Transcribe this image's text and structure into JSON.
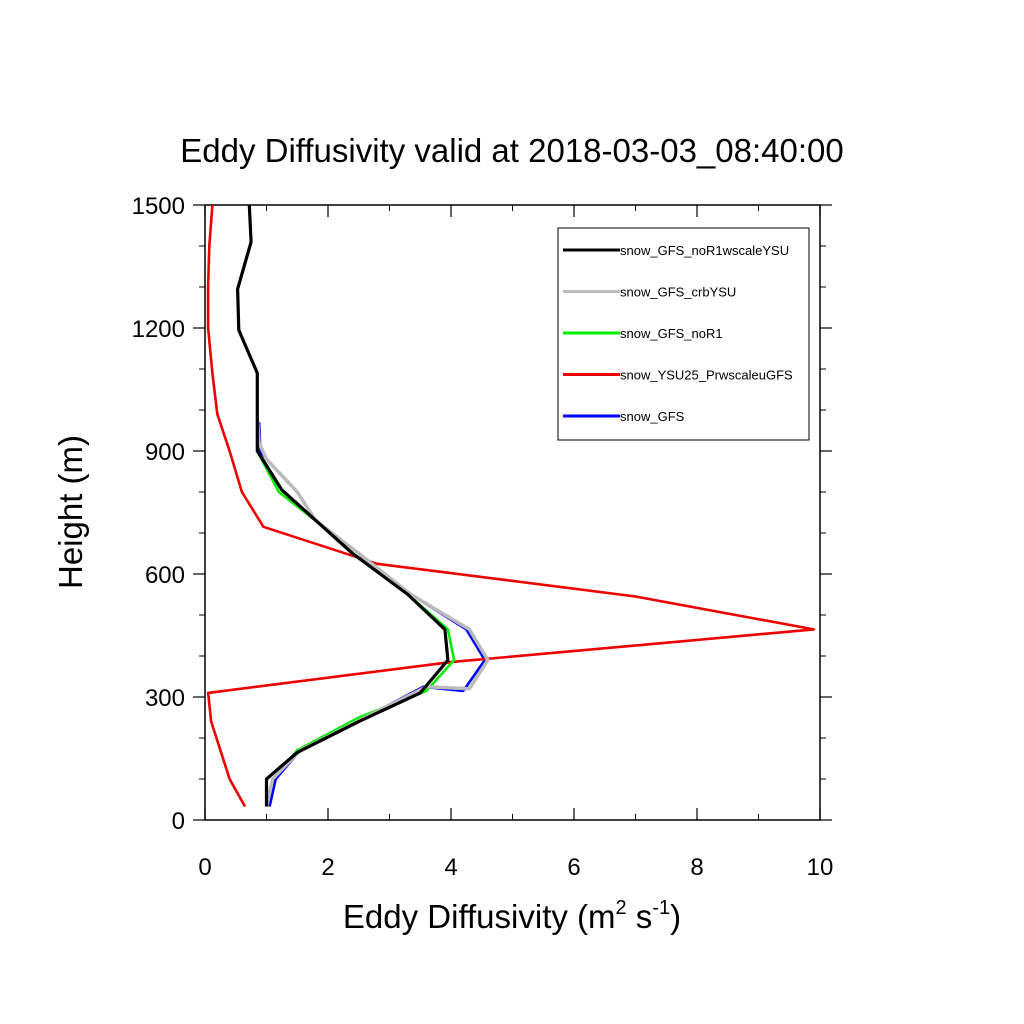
{
  "chart_data": {
    "type": "line",
    "title": "Eddy Diffusivity valid at 2018-03-03_08:40:00",
    "xlabel": {
      "main": "Eddy Diffusivity (m",
      "sup1": "2",
      "mid": " s",
      "sup2": "-1",
      "end": ")"
    },
    "ylabel": "Height (m)",
    "xlim": [
      0,
      10
    ],
    "ylim": [
      0,
      1500
    ],
    "xticks": [
      0,
      2,
      4,
      6,
      8,
      10
    ],
    "yticks": [
      0,
      300,
      600,
      900,
      1200,
      1500
    ],
    "xticks_minor": [
      1,
      3,
      5,
      7,
      9
    ],
    "yticks_minor": [
      100,
      200,
      400,
      500,
      700,
      800,
      1000,
      1100,
      1300,
      1400
    ],
    "legend_position": "top-right",
    "series": [
      {
        "name": "snow_GFS",
        "color": "#0000ff",
        "x": [
          1.05,
          1.15,
          1.55,
          2.6,
          3.55,
          4.2,
          4.55,
          4.25,
          3.35,
          2.5,
          1.8,
          1.5,
          1.0,
          0.9,
          0.88
        ],
        "y": [
          33,
          100,
          170,
          250,
          325,
          315,
          390,
          465,
          550,
          650,
          730,
          800,
          880,
          900,
          970
        ]
      },
      {
        "name": "snow_YSU25_PrwscaleuGFS",
        "color": "#ee0000",
        "x": [
          0.65,
          0.4,
          0.25,
          0.1,
          0.05,
          4.0,
          9.9,
          7.0,
          2.8,
          0.95,
          0.6,
          0.4,
          0.2,
          0.12,
          0.05,
          0.05,
          0.07,
          0.12
        ],
        "y": [
          33,
          100,
          170,
          240,
          310,
          385,
          465,
          545,
          625,
          715,
          800,
          900,
          990,
          1090,
          1200,
          1300,
          1400,
          1500
        ]
      },
      {
        "name": "snow_GFS_noR1",
        "color": "#00ee00",
        "x": [
          1.0,
          1.1,
          1.5,
          2.5,
          3.6,
          4.05,
          3.95,
          3.3,
          2.5,
          1.8,
          1.2,
          0.85,
          0.85
        ],
        "y": [
          33,
          100,
          170,
          250,
          315,
          390,
          465,
          550,
          650,
          730,
          800,
          900,
          960
        ]
      },
      {
        "name": "snow_GFS_crbYSU",
        "color": "#bbbbbb",
        "x": [
          1.0,
          1.1,
          1.55,
          2.6,
          3.6,
          4.3,
          4.6,
          4.3,
          3.35,
          2.5,
          1.8,
          1.5,
          1.0,
          0.88,
          0.85
        ],
        "y": [
          33,
          100,
          170,
          250,
          325,
          320,
          390,
          465,
          550,
          650,
          730,
          800,
          880,
          920,
          980
        ]
      },
      {
        "name": "snow_GFS_noR1wscaleYSU",
        "color": "#000000",
        "x": [
          1.0,
          1.0,
          1.5,
          2.5,
          3.5,
          3.95,
          3.9,
          3.3,
          2.4,
          1.25,
          0.85,
          0.85,
          0.85,
          0.55,
          0.53,
          0.75,
          0.72
        ],
        "y": [
          33,
          100,
          165,
          240,
          310,
          390,
          465,
          550,
          650,
          805,
          900,
          990,
          1090,
          1195,
          1295,
          1410,
          1500
        ]
      }
    ],
    "legend_order": [
      {
        "name": "snow_GFS_noR1wscaleYSU",
        "color": "#000000"
      },
      {
        "name": "snow_GFS_crbYSU",
        "color": "#bbbbbb"
      },
      {
        "name": "snow_GFS_noR1",
        "color": "#00ee00"
      },
      {
        "name": "snow_YSU25_PrwscaleuGFS",
        "color": "#ee0000"
      },
      {
        "name": "snow_GFS",
        "color": "#0000ff"
      }
    ]
  }
}
